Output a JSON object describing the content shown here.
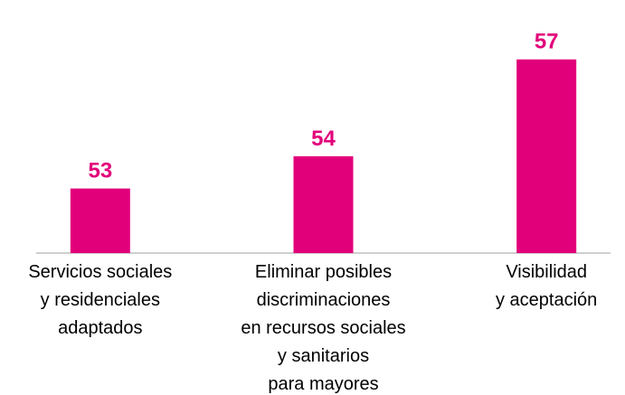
{
  "chart_data": {
    "type": "bar",
    "categories": [
      "Servicios sociales\ny residenciales\nadaptados",
      "Eliminar posibles\ndiscriminaciones\nen recursos sociales\ny sanitarios\npara mayores",
      "Visibilidad\ny aceptación"
    ],
    "values": [
      53,
      54,
      57
    ],
    "color": "#e2007a",
    "ylim": [
      51,
      58
    ]
  }
}
